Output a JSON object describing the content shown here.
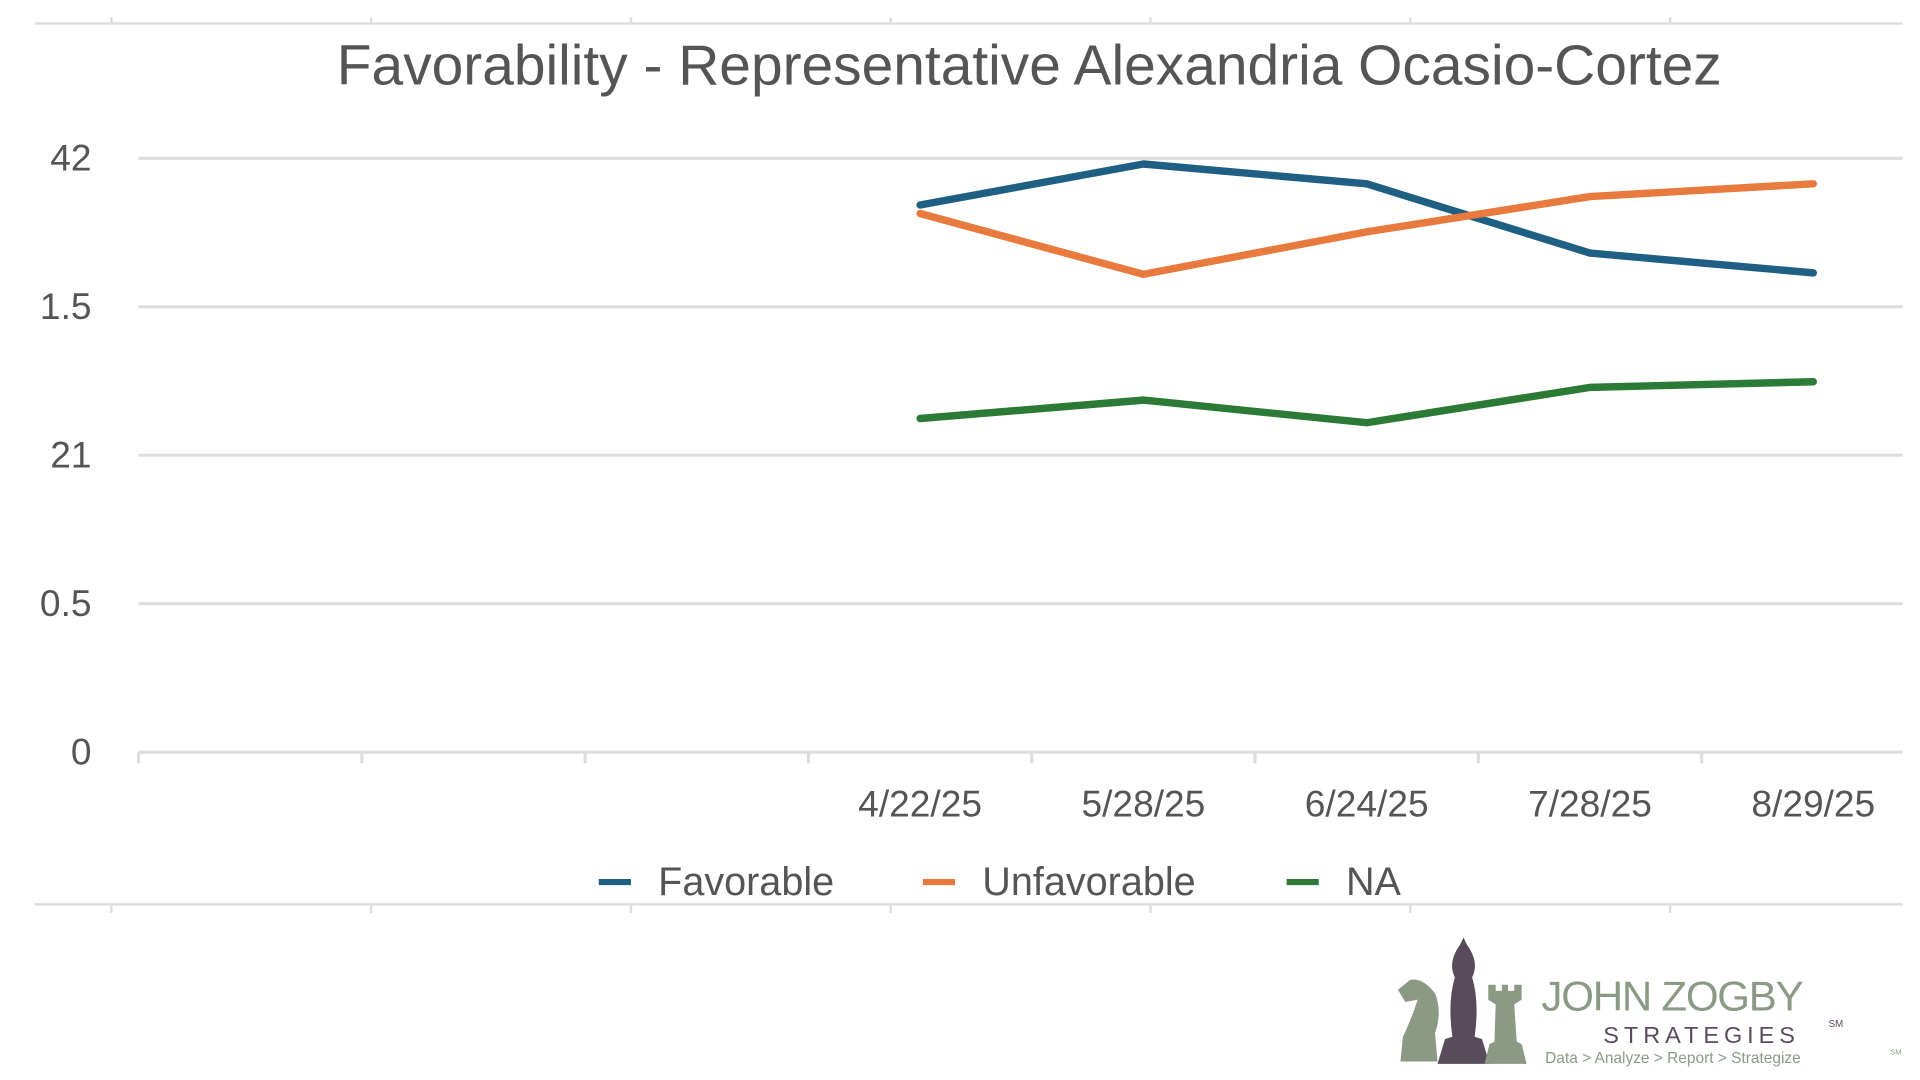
{
  "chart_data": {
    "type": "line",
    "title": "Favorability - Representative Alexandria Ocasio-Cortez",
    "categories": [
      null,
      null,
      null,
      "4/22/25",
      "5/28/25",
      "6/24/25",
      "7/28/25",
      "8/29/25"
    ],
    "series": [
      {
        "name": "Favorable",
        "color": "#1f5f84",
        "values": [
          null,
          null,
          null,
          38.7,
          41.6,
          40.2,
          35.3,
          33.9
        ]
      },
      {
        "name": "Unfavorable",
        "color": "#e87a3e",
        "values": [
          null,
          null,
          null,
          38.1,
          33.8,
          36.8,
          39.3,
          40.2
        ]
      },
      {
        "name": "NA",
        "color": "#2b7a35",
        "values": [
          null,
          null,
          null,
          23.6,
          24.9,
          23.3,
          25.8,
          26.2
        ]
      }
    ],
    "ylim": [
      0,
      42
    ],
    "yticks": [
      0,
      {
        "value": 10.5,
        "label": "0.5"
      },
      21,
      {
        "value": 31.5,
        "label": "1.5"
      },
      42
    ],
    "grid": true,
    "legend": "bottom"
  },
  "logo": {
    "name": "JOHN ZOGBY",
    "line2": "STRATEGIES",
    "mark": "SM",
    "tagline": "Data > Analyze > Report > Strategize",
    "tagline_mark": "SM"
  }
}
